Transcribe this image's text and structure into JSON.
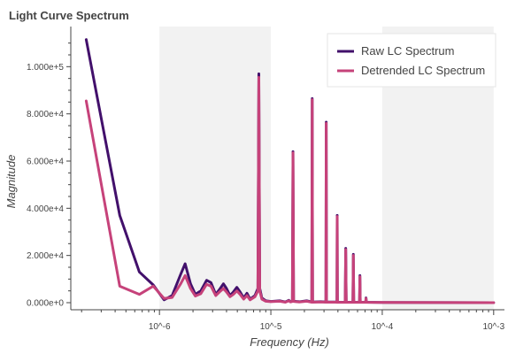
{
  "chart_data": {
    "type": "line",
    "title": "Light Curve Spectrum",
    "xlabel": "Frequency (Hz)",
    "ylabel": "Magnitude",
    "xscale": "log",
    "xlim": [
      1.6e-07,
      0.00125
    ],
    "ylim": [
      -3000,
      117000
    ],
    "x_ticks": [
      {
        "value": 1e-06,
        "label": "10^-6"
      },
      {
        "value": 1e-05,
        "label": "10^-5"
      },
      {
        "value": 0.0001,
        "label": "10^-4"
      },
      {
        "value": 0.001,
        "label": "10^-3"
      }
    ],
    "y_ticks": [
      {
        "value": 0,
        "label": "0.000e+0"
      },
      {
        "value": 20000,
        "label": "2.000e+4"
      },
      {
        "value": 40000,
        "label": "4.000e+4"
      },
      {
        "value": 60000,
        "label": "6.000e+4"
      },
      {
        "value": 80000,
        "label": "8.000e+4"
      },
      {
        "value": 100000,
        "label": "1.000e+5"
      }
    ],
    "shaded_bands": [
      {
        "from": 1e-06,
        "to": 1e-05
      },
      {
        "from": 0.0001,
        "to": 0.001
      }
    ],
    "legend_position": "top-right",
    "series": [
      {
        "name": "Raw LC Spectrum",
        "color": "#42106b",
        "points": [
          [
            2.2e-07,
            111500
          ],
          [
            4.4e-07,
            37000
          ],
          [
            6.6e-07,
            13000
          ],
          [
            8.8e-07,
            7500
          ],
          [
            1.1e-06,
            1200
          ],
          [
            1.3e-06,
            3000
          ],
          [
            1.55e-06,
            12000
          ],
          [
            1.7e-06,
            16500
          ],
          [
            1.9e-06,
            8000
          ],
          [
            2.1e-06,
            3500
          ],
          [
            2.35e-06,
            5000
          ],
          [
            2.65e-06,
            9500
          ],
          [
            2.9e-06,
            8500
          ],
          [
            3.2e-06,
            3500
          ],
          [
            3.45e-06,
            5500
          ],
          [
            3.75e-06,
            8000
          ],
          [
            4e-06,
            6000
          ],
          [
            4.3e-06,
            3000
          ],
          [
            4.6e-06,
            4500
          ],
          [
            4.95e-06,
            6500
          ],
          [
            5.3e-06,
            4500
          ],
          [
            5.7e-06,
            2000
          ],
          [
            6.1e-06,
            4000
          ],
          [
            6.5e-06,
            1500
          ],
          [
            7.2e-06,
            3000
          ],
          [
            7.65e-06,
            6000
          ],
          [
            7.8e-06,
            97000
          ],
          [
            7.95e-06,
            6000
          ],
          [
            8.3e-06,
            2000
          ],
          [
            9e-06,
            800
          ],
          [
            1e-05,
            500
          ],
          [
            1.2e-05,
            800
          ],
          [
            1.35e-05,
            300
          ],
          [
            1.45e-05,
            1000
          ],
          [
            1.5e-05,
            400
          ],
          [
            1.56e-05,
            600
          ],
          [
            1.58e-05,
            64000
          ],
          [
            1.6e-05,
            600
          ],
          [
            1.8e-05,
            400
          ],
          [
            2.1e-05,
            800
          ],
          [
            2.33e-05,
            300
          ],
          [
            2.35e-05,
            86500
          ],
          [
            2.37e-05,
            300
          ],
          [
            2.8e-05,
            400
          ],
          [
            3.12e-05,
            300
          ],
          [
            3.14e-05,
            76500
          ],
          [
            3.16e-05,
            300
          ],
          [
            3.8e-05,
            300
          ],
          [
            3.92e-05,
            200
          ],
          [
            3.94e-05,
            37000
          ],
          [
            3.96e-05,
            200
          ],
          [
            4.65e-05,
            200
          ],
          [
            4.7e-05,
            23000
          ],
          [
            4.75e-05,
            200
          ],
          [
            5.45e-05,
            200
          ],
          [
            5.5e-05,
            20500
          ],
          [
            5.55e-05,
            200
          ],
          [
            6.25e-05,
            200
          ],
          [
            6.3e-05,
            11500
          ],
          [
            6.35e-05,
            200
          ],
          [
            7.1e-05,
            200
          ],
          [
            7.15e-05,
            2000
          ],
          [
            7.2e-05,
            200
          ],
          [
            0.0001,
            100
          ],
          [
            0.001,
            0
          ]
        ]
      },
      {
        "name": "Detrended LC Spectrum",
        "color": "#c6427a",
        "points": [
          [
            2.2e-07,
            85500
          ],
          [
            4.4e-07,
            7000
          ],
          [
            6.6e-07,
            3500
          ],
          [
            8.8e-07,
            7000
          ],
          [
            1.1e-06,
            1800
          ],
          [
            1.3e-06,
            2200
          ],
          [
            1.55e-06,
            8000
          ],
          [
            1.7e-06,
            11500
          ],
          [
            1.9e-06,
            6000
          ],
          [
            2.1e-06,
            2800
          ],
          [
            2.35e-06,
            3800
          ],
          [
            2.65e-06,
            7800
          ],
          [
            2.9e-06,
            7000
          ],
          [
            3.2e-06,
            3000
          ],
          [
            3.45e-06,
            4500
          ],
          [
            3.75e-06,
            6000
          ],
          [
            4e-06,
            4500
          ],
          [
            4.3e-06,
            2500
          ],
          [
            4.6e-06,
            3500
          ],
          [
            4.95e-06,
            5000
          ],
          [
            5.3e-06,
            3500
          ],
          [
            5.7e-06,
            1500
          ],
          [
            6.1e-06,
            3000
          ],
          [
            6.5e-06,
            1200
          ],
          [
            7.2e-06,
            2500
          ],
          [
            7.65e-06,
            5000
          ],
          [
            7.8e-06,
            95500
          ],
          [
            7.95e-06,
            5000
          ],
          [
            8.3e-06,
            1500
          ],
          [
            9e-06,
            600
          ],
          [
            1e-05,
            400
          ],
          [
            1.2e-05,
            600
          ],
          [
            1.35e-05,
            200
          ],
          [
            1.45e-05,
            800
          ],
          [
            1.5e-05,
            300
          ],
          [
            1.56e-05,
            500
          ],
          [
            1.58e-05,
            63500
          ],
          [
            1.6e-05,
            500
          ],
          [
            1.8e-05,
            300
          ],
          [
            2.1e-05,
            600
          ],
          [
            2.33e-05,
            200
          ],
          [
            2.35e-05,
            86000
          ],
          [
            2.37e-05,
            200
          ],
          [
            2.8e-05,
            300
          ],
          [
            3.12e-05,
            200
          ],
          [
            3.14e-05,
            76000
          ],
          [
            3.16e-05,
            200
          ],
          [
            3.8e-05,
            200
          ],
          [
            3.92e-05,
            150
          ],
          [
            3.94e-05,
            36500
          ],
          [
            3.96e-05,
            150
          ],
          [
            4.65e-05,
            150
          ],
          [
            4.7e-05,
            22500
          ],
          [
            4.75e-05,
            150
          ],
          [
            5.45e-05,
            150
          ],
          [
            5.5e-05,
            20000
          ],
          [
            5.55e-05,
            150
          ],
          [
            6.25e-05,
            150
          ],
          [
            6.3e-05,
            11000
          ],
          [
            6.35e-05,
            150
          ],
          [
            7.1e-05,
            150
          ],
          [
            7.15e-05,
            1800
          ],
          [
            7.2e-05,
            150
          ],
          [
            0.0001,
            80
          ],
          [
            0.001,
            0
          ]
        ]
      }
    ]
  }
}
